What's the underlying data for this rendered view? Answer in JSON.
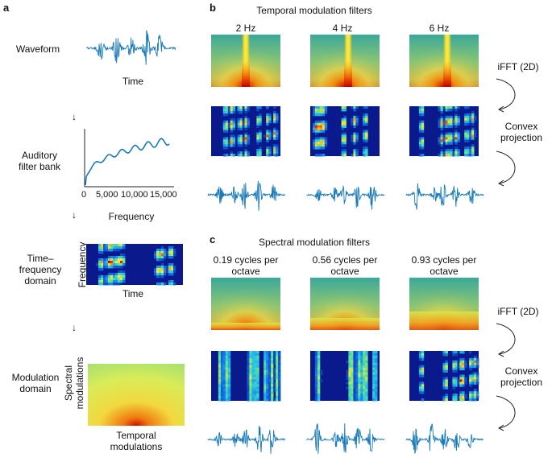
{
  "colors": {
    "waveform": "#1a7ab8",
    "axis": "#222222",
    "spectro_bg": "#0a1a8c",
    "hot": "#d40000",
    "mod_green": "#3aa89a",
    "mod_yellow": "#f2e64a"
  },
  "panel_a": {
    "letter": "a",
    "rows": [
      {
        "left_label": "Waveform",
        "caption": "Time"
      },
      {
        "left_label_line1": "Auditory",
        "left_label_line2": "filter bank",
        "caption": "Frequency",
        "ticks": [
          "0",
          "5,000",
          "10,000",
          "15,000"
        ]
      },
      {
        "left_label_line1": "Time–",
        "left_label_line2": "frequency",
        "left_label_line3": "domain",
        "ylabel": "Frequency",
        "caption": "Time"
      },
      {
        "left_label_line1": "Modulation",
        "left_label_line2": "domain",
        "ylabel_line1": "Spectral",
        "ylabel_line2": "modulations",
        "caption_line1": "Temporal",
        "caption_line2": "modulations"
      }
    ],
    "arrow_glyph": "↓"
  },
  "panel_b": {
    "letter": "b",
    "title": "Temporal modulation filters",
    "columns": [
      "2 Hz",
      "4 Hz",
      "6 Hz"
    ],
    "step1": "iFFT (2D)",
    "step2_line1": "Convex",
    "step2_line2": "projection"
  },
  "panel_c": {
    "letter": "c",
    "title": "Spectral modulation filters",
    "columns": [
      {
        "line1": "0.19 cycles per",
        "line2": "octave"
      },
      {
        "line1": "0.56 cycles per",
        "line2": "octave"
      },
      {
        "line1": "0.93 cycles per",
        "line2": "octave"
      }
    ],
    "step1": "iFFT (2D)",
    "step2_line1": "Convex",
    "step2_line2": "projection"
  }
}
